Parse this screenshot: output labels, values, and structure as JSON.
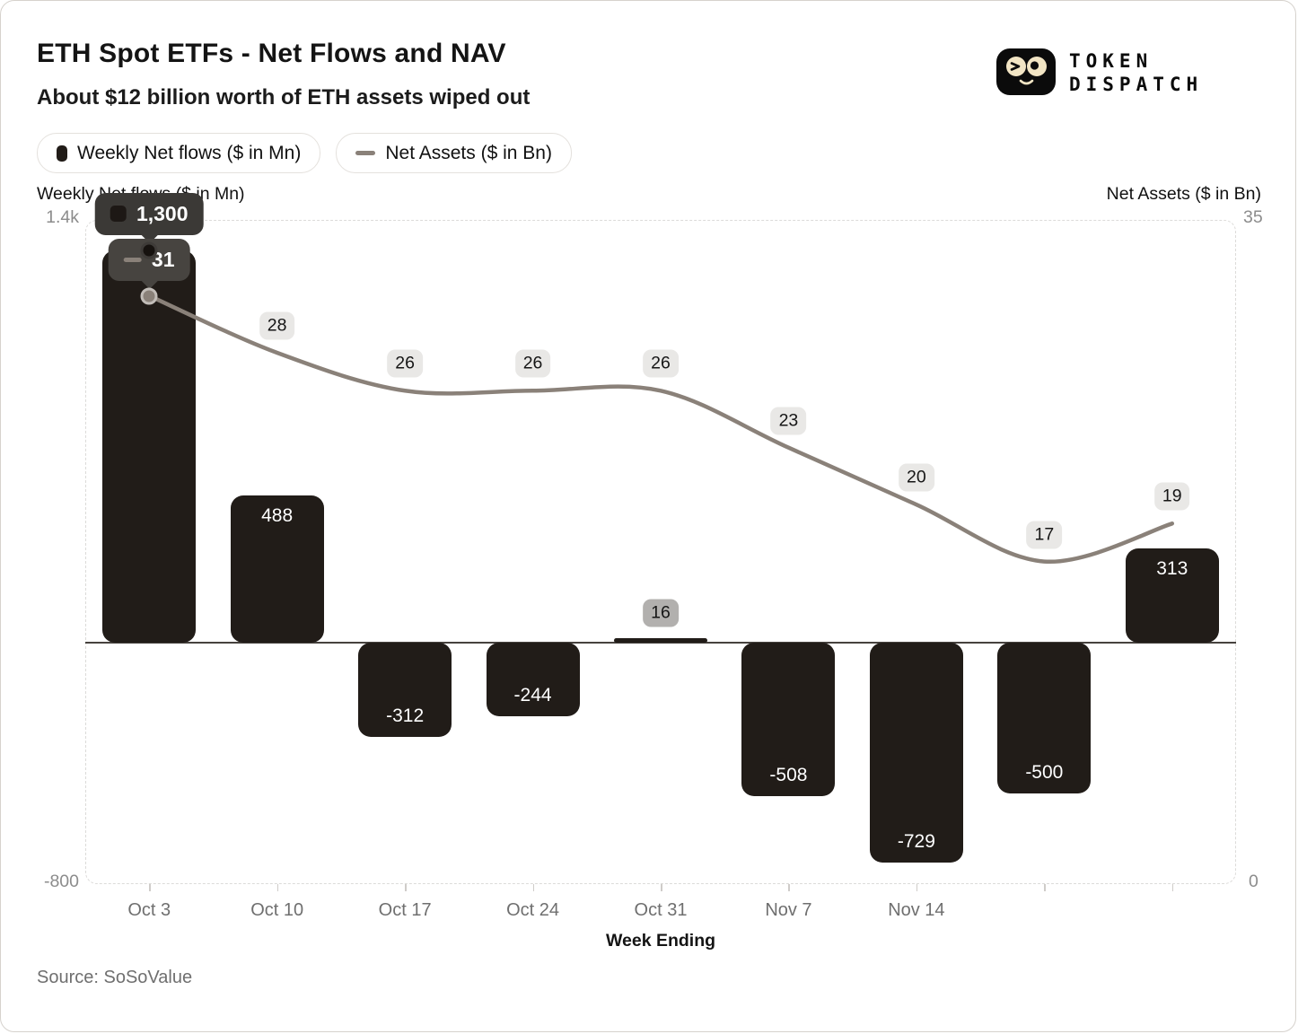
{
  "header": {
    "title": "ETH Spot ETFs - Net Flows and NAV",
    "subtitle": "About $12 billion worth of ETH assets wiped out",
    "logo": {
      "line1": "TOKEN",
      "line2": "DISPATCH"
    }
  },
  "legend": [
    {
      "label": "Weekly Net flows ($ in Mn)",
      "swatch": "bar-swatch"
    },
    {
      "label": "Net Assets ($ in Bn)",
      "swatch": "line-swatch"
    }
  ],
  "axes": {
    "left_title": "Weekly Net flows ($ in Mn)",
    "right_title": "Net Assets ($ in Bn)",
    "left_top_tick": "1.4k",
    "left_bottom_tick": "-800",
    "right_top_tick": "35",
    "right_bottom_tick": "0",
    "x_title": "Week Ending"
  },
  "tooltip": {
    "bar_value": "1,300",
    "line_value": "31"
  },
  "footer": {
    "source": "Source: SoSoValue"
  },
  "colors": {
    "bar": "#211c18",
    "line": "#8a8179",
    "badge_bg": "#e9e8e6",
    "badge_dark_bg": "#b2b0ae",
    "tooltip_bar_bg": "#3b3936",
    "tooltip_line_bg": "#474440",
    "axis_text": "#8c8c8c",
    "logo_cream": "#f2e5c4"
  },
  "chart_data": {
    "type": "bar",
    "categories": [
      "Oct 3",
      "Oct 10",
      "Oct 17",
      "Oct 24",
      "Oct 31",
      "Nov 7",
      "Nov 14",
      "",
      ""
    ],
    "series": [
      {
        "name": "Weekly Net flows ($ in Mn)",
        "type": "bar",
        "axis": "left",
        "values": [
          1300,
          488,
          -312,
          -244,
          16,
          -508,
          -729,
          -500,
          313
        ]
      },
      {
        "name": "Net Assets ($ in Bn)",
        "type": "line",
        "axis": "right",
        "values": [
          31,
          28,
          26,
          26,
          26,
          23,
          20,
          17,
          19
        ]
      }
    ],
    "bar_labels": [
      {
        "text": "1,300",
        "style": "hidden"
      },
      {
        "text": "488",
        "style": "inside"
      },
      {
        "text": "-312",
        "style": "inside"
      },
      {
        "text": "-244",
        "style": "inside"
      },
      {
        "text": "16",
        "style": "badge"
      },
      {
        "text": "-508",
        "style": "inside"
      },
      {
        "text": "-729",
        "style": "inside"
      },
      {
        "text": "-500",
        "style": "inside"
      },
      {
        "text": "313",
        "style": "inside"
      }
    ],
    "left_ylim": [
      -800,
      1400
    ],
    "right_ylim": [
      0,
      35
    ],
    "xlabel": "Week Ending",
    "legend_position": "top-left",
    "grid": false
  }
}
